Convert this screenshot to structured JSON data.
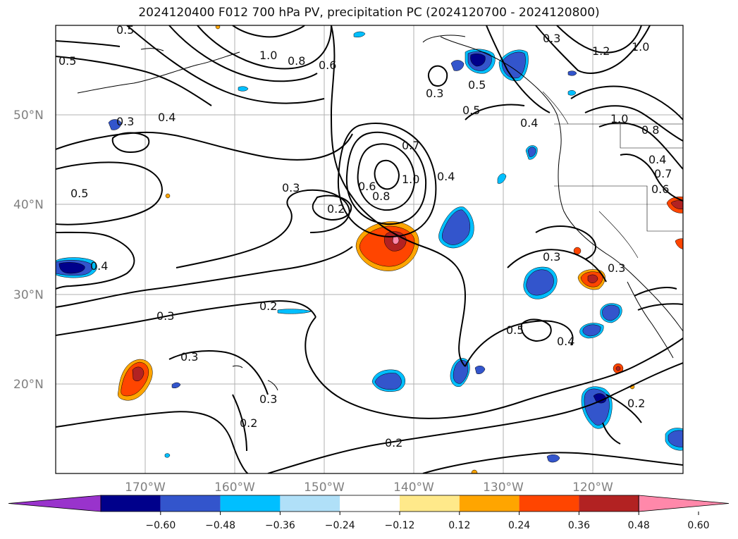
{
  "title": "2024120400 F012 700 hPa PV, precipitation PC (2024120700 - 2024120800)",
  "map": {
    "lat_labels": [
      "50°N",
      "40°N",
      "30°N",
      "20°N"
    ],
    "lon_labels": [
      "170°W",
      "160°W",
      "150°W",
      "140°W",
      "130°W",
      "120°W"
    ],
    "contour_labels": [
      "0.5",
      "0.5",
      "1.0",
      "0.8",
      "0.6",
      "0.3",
      "0.4",
      "0.5",
      "0.3",
      "0.2",
      "0.6",
      "0.8",
      "1.0",
      "0.7",
      "0.4",
      "0.4",
      "0.3",
      "0.2",
      "0.3",
      "0.2",
      "0.3",
      "0.3",
      "0.2",
      "0.5",
      "0.4",
      "0.3",
      "0.5",
      "0.3",
      "0.4",
      "1.2",
      "1.0",
      "0.8",
      "0.4",
      "0.7",
      "0.6",
      "0.3",
      "0.2",
      "1.0",
      "0.5"
    ]
  },
  "colorbar": {
    "colors": [
      "#9933cc",
      "#00008b",
      "#3355cc",
      "#00bfff",
      "#b0e0f8",
      "#ffffff",
      "#ffe98a",
      "#ffa500",
      "#ff4500",
      "#b22222",
      "#ff88aa"
    ],
    "ticks": [
      "−0.60",
      "−0.48",
      "−0.36",
      "−0.24",
      "−0.12",
      "0.12",
      "0.24",
      "0.36",
      "0.48",
      "0.60"
    ]
  }
}
